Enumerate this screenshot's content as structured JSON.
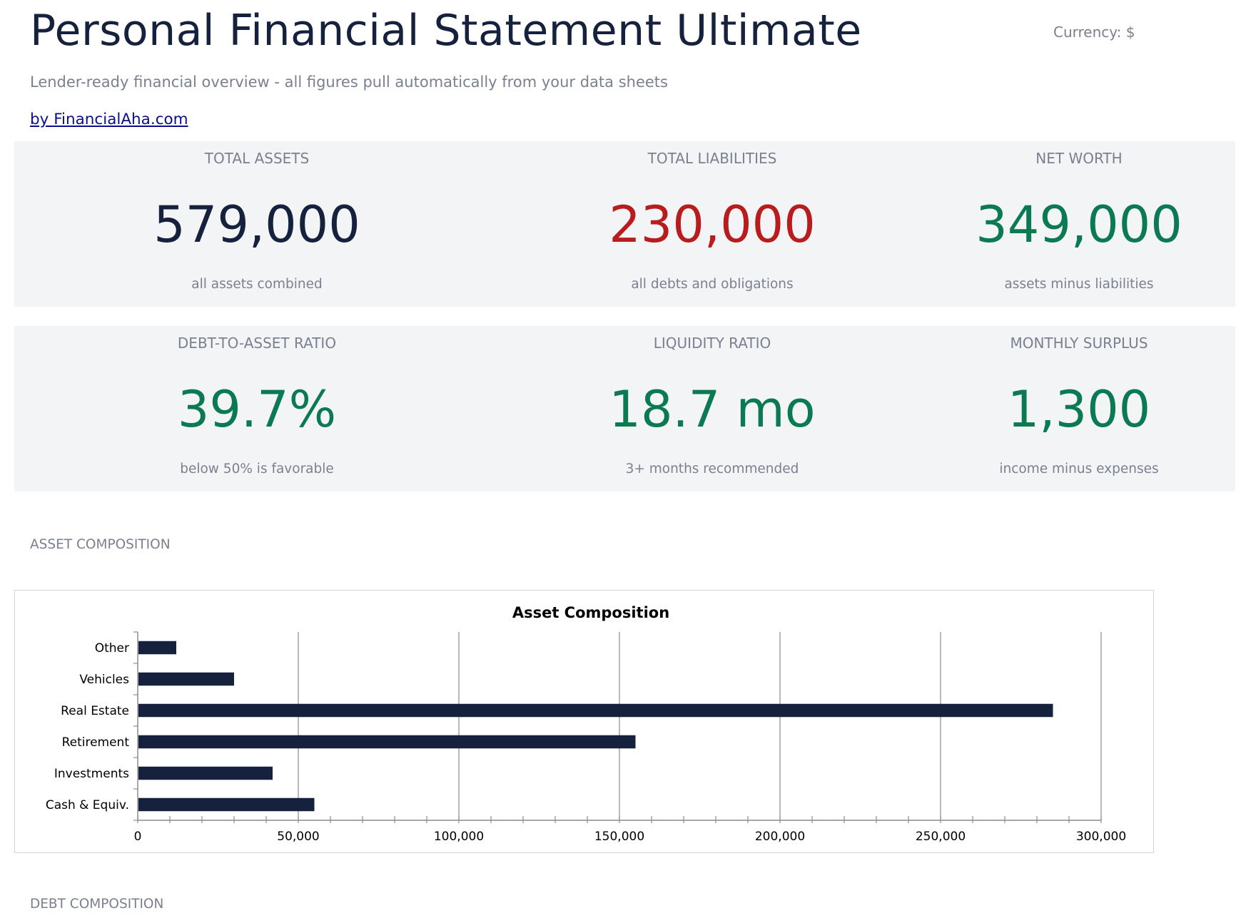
{
  "header": {
    "title": "Personal Financial Statement Ultimate",
    "currency_label": "Currency: $",
    "subtitle": "Lender-ready financial overview - all figures pull automatically from your data sheets",
    "byline": "by FinancialAha.com"
  },
  "colors": {
    "navy": "#16213e",
    "red": "#b91c1c",
    "green": "#0b7a52",
    "muted": "#7a8090",
    "panel": "#f3f4f6"
  },
  "kpis_row1": [
    {
      "label": "TOTAL ASSETS",
      "value": "579,000",
      "sub": "all assets combined",
      "color": "#16213e"
    },
    {
      "label": "TOTAL LIABILITIES",
      "value": "230,000",
      "sub": "all debts and obligations",
      "color": "#b91c1c"
    },
    {
      "label": "NET WORTH",
      "value": "349,000",
      "sub": "assets minus liabilities",
      "color": "#0b7a52"
    }
  ],
  "kpis_row2": [
    {
      "label": "DEBT-TO-ASSET RATIO",
      "value": "39.7%",
      "sub": "below 50% is favorable",
      "color": "#0b7a52"
    },
    {
      "label": "LIQUIDITY RATIO",
      "value": "18.7 mo",
      "sub": "3+ months recommended",
      "color": "#0b7a52"
    },
    {
      "label": "MONTHLY SURPLUS",
      "value": "1,300",
      "sub": "income minus expenses",
      "color": "#0b7a52"
    }
  ],
  "sections": {
    "asset_composition": "ASSET COMPOSITION",
    "debt_composition": "DEBT COMPOSITION"
  },
  "chart_data": {
    "type": "bar",
    "orientation": "horizontal",
    "title": "Asset Composition",
    "categories": [
      "Other",
      "Vehicles",
      "Real Estate",
      "Retirement",
      "Investments",
      "Cash & Equiv."
    ],
    "values": [
      12000,
      30000,
      285000,
      155000,
      42000,
      55000
    ],
    "xlim": [
      0,
      300000
    ],
    "xticks": [
      "0",
      "50,000",
      "100,000",
      "150,000",
      "200,000",
      "250,000",
      "300,000"
    ],
    "xlabel": "",
    "ylabel": "",
    "grid": true,
    "bar_color": "#16213e"
  }
}
